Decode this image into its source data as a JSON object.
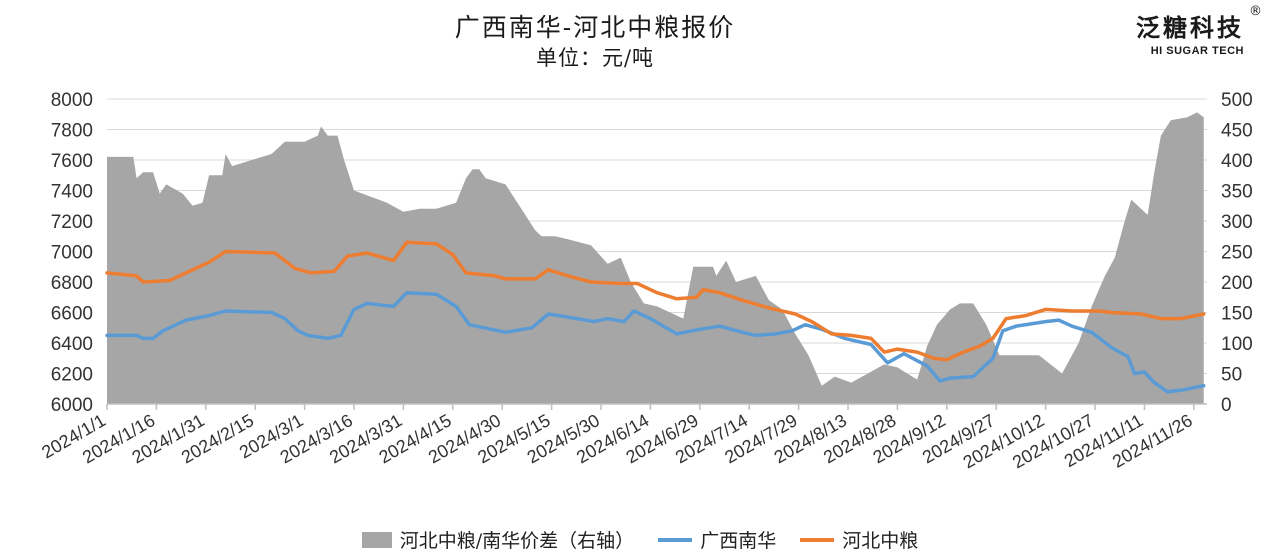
{
  "header": {
    "title": "广西南华-河北中粮报价",
    "subtitle": "单位：元/吨"
  },
  "logo": {
    "text": "泛糖科技",
    "registered": "®",
    "sub": "HI SUGAR TECH"
  },
  "colors": {
    "spread": "#a6a6a6",
    "guangxi": "#5b9bd5",
    "hebei": "#ed7d31",
    "axis_text": "#333333",
    "grid": "#d9d9d9"
  },
  "chart_data": {
    "type": "line",
    "title": "广西南华-河北中粮报价",
    "subtitle": "单位：元/吨",
    "y_left": {
      "min": 6000,
      "max": 8000,
      "ticks": [
        6000,
        6200,
        6400,
        6600,
        6800,
        7000,
        7200,
        7400,
        7600,
        7800,
        8000
      ]
    },
    "y_right": {
      "min": 0,
      "max": 500,
      "ticks": [
        0,
        50,
        100,
        150,
        200,
        250,
        300,
        350,
        400,
        450,
        500
      ]
    },
    "x_range": [
      "2024/1/1",
      "2024/11/30"
    ],
    "x_ticks": [
      "2024/1/1",
      "2024/1/16",
      "2024/1/31",
      "2024/2/15",
      "2024/3/1",
      "2024/3/16",
      "2024/3/31",
      "2024/4/15",
      "2024/4/30",
      "2024/5/15",
      "2024/5/30",
      "2024/6/14",
      "2024/6/29",
      "2024/7/14",
      "2024/7/29",
      "2024/8/13",
      "2024/8/28",
      "2024/9/12",
      "2024/9/27",
      "2024/10/12",
      "2024/10/27",
      "2024/11/11",
      "2024/11/26"
    ],
    "grid": true,
    "legend_position": "bottom",
    "series": [
      {
        "name": "河北中粮/南华价差（右轴）",
        "type": "area",
        "axis": "right",
        "color": "#a6a6a6",
        "points": [
          [
            "2024/1/1",
            405
          ],
          [
            "2024/1/9",
            405
          ],
          [
            "2024/1/10",
            370
          ],
          [
            "2024/1/12",
            380
          ],
          [
            "2024/1/15",
            380
          ],
          [
            "2024/1/17",
            345
          ],
          [
            "2024/1/19",
            360
          ],
          [
            "2024/1/24",
            345
          ],
          [
            "2024/1/27",
            325
          ],
          [
            "2024/1/30",
            330
          ],
          [
            "2024/2/1",
            375
          ],
          [
            "2024/2/5",
            375
          ],
          [
            "2024/2/6",
            410
          ],
          [
            "2024/2/8",
            390
          ],
          [
            "2024/2/20",
            410
          ],
          [
            "2024/2/24",
            430
          ],
          [
            "2024/3/1",
            430
          ],
          [
            "2024/3/5",
            440
          ],
          [
            "2024/3/6",
            455
          ],
          [
            "2024/3/8",
            440
          ],
          [
            "2024/3/11",
            440
          ],
          [
            "2024/3/13",
            400
          ],
          [
            "2024/3/16",
            350
          ],
          [
            "2024/3/21",
            340
          ],
          [
            "2024/3/26",
            330
          ],
          [
            "2024/3/31",
            315
          ],
          [
            "2024/4/5",
            320
          ],
          [
            "2024/4/10",
            320
          ],
          [
            "2024/4/16",
            330
          ],
          [
            "2024/4/19",
            370
          ],
          [
            "2024/4/21",
            385
          ],
          [
            "2024/4/23",
            385
          ],
          [
            "2024/4/25",
            370
          ],
          [
            "2024/5/1",
            360
          ],
          [
            "2024/5/7",
            310
          ],
          [
            "2024/5/10",
            285
          ],
          [
            "2024/5/12",
            275
          ],
          [
            "2024/5/16",
            275
          ],
          [
            "2024/5/20",
            270
          ],
          [
            "2024/5/27",
            260
          ],
          [
            "2024/6/1",
            230
          ],
          [
            "2024/6/5",
            240
          ],
          [
            "2024/6/8",
            200
          ],
          [
            "2024/6/12",
            165
          ],
          [
            "2024/6/16",
            160
          ],
          [
            "2024/6/24",
            140
          ],
          [
            "2024/6/27",
            225
          ],
          [
            "2024/7/3",
            225
          ],
          [
            "2024/7/4",
            210
          ],
          [
            "2024/7/7",
            235
          ],
          [
            "2024/7/10",
            200
          ],
          [
            "2024/7/16",
            210
          ],
          [
            "2024/7/20",
            170
          ],
          [
            "2024/7/24",
            155
          ],
          [
            "2024/7/28",
            115
          ],
          [
            "2024/8/1",
            80
          ],
          [
            "2024/8/5",
            30
          ],
          [
            "2024/8/9",
            45
          ],
          [
            "2024/8/14",
            35
          ],
          [
            "2024/8/19",
            50
          ],
          [
            "2024/8/24",
            65
          ],
          [
            "2024/8/28",
            60
          ],
          [
            "2024/8/31",
            50
          ],
          [
            "2024/9/3",
            40
          ],
          [
            "2024/9/6",
            95
          ],
          [
            "2024/9/9",
            130
          ],
          [
            "2024/9/13",
            155
          ],
          [
            "2024/9/16",
            165
          ],
          [
            "2024/9/20",
            165
          ],
          [
            "2024/9/24",
            130
          ],
          [
            "2024/9/28",
            80
          ],
          [
            "2024/10/3",
            80
          ],
          [
            "2024/10/10",
            80
          ],
          [
            "2024/10/17",
            50
          ],
          [
            "2024/10/22",
            100
          ],
          [
            "2024/10/26",
            160
          ],
          [
            "2024/10/30",
            210
          ],
          [
            "2024/11/2",
            240
          ],
          [
            "2024/11/5",
            300
          ],
          [
            "2024/11/7",
            335
          ],
          [
            "2024/11/9",
            325
          ],
          [
            "2024/11/12",
            310
          ],
          [
            "2024/11/14",
            380
          ],
          [
            "2024/11/16",
            440
          ],
          [
            "2024/11/19",
            465
          ],
          [
            "2024/11/24",
            470
          ],
          [
            "2024/11/27",
            478
          ],
          [
            "2024/11/29",
            470
          ]
        ]
      },
      {
        "name": "广西南华",
        "type": "line",
        "axis": "left",
        "color": "#5b9bd5",
        "points": [
          [
            "2024/1/1",
            6450
          ],
          [
            "2024/1/10",
            6450
          ],
          [
            "2024/1/12",
            6430
          ],
          [
            "2024/1/15",
            6430
          ],
          [
            "2024/1/18",
            6480
          ],
          [
            "2024/1/25",
            6550
          ],
          [
            "2024/2/1",
            6580
          ],
          [
            "2024/2/6",
            6610
          ],
          [
            "2024/2/20",
            6600
          ],
          [
            "2024/2/24",
            6560
          ],
          [
            "2024/2/28",
            6480
          ],
          [
            "2024/3/2",
            6450
          ],
          [
            "2024/3/8",
            6430
          ],
          [
            "2024/3/12",
            6450
          ],
          [
            "2024/3/16",
            6620
          ],
          [
            "2024/3/20",
            6660
          ],
          [
            "2024/3/28",
            6640
          ],
          [
            "2024/4/1",
            6730
          ],
          [
            "2024/4/10",
            6720
          ],
          [
            "2024/4/16",
            6640
          ],
          [
            "2024/4/20",
            6520
          ],
          [
            "2024/5/1",
            6470
          ],
          [
            "2024/5/9",
            6500
          ],
          [
            "2024/5/14",
            6590
          ],
          [
            "2024/5/20",
            6570
          ],
          [
            "2024/5/28",
            6540
          ],
          [
            "2024/6/1",
            6560
          ],
          [
            "2024/6/6",
            6540
          ],
          [
            "2024/6/9",
            6610
          ],
          [
            "2024/6/14",
            6560
          ],
          [
            "2024/6/22",
            6460
          ],
          [
            "2024/6/29",
            6490
          ],
          [
            "2024/7/5",
            6510
          ],
          [
            "2024/7/12",
            6470
          ],
          [
            "2024/7/16",
            6450
          ],
          [
            "2024/7/22",
            6460
          ],
          [
            "2024/7/27",
            6480
          ],
          [
            "2024/7/31",
            6520
          ],
          [
            "2024/8/5",
            6490
          ],
          [
            "2024/8/12",
            6430
          ],
          [
            "2024/8/20",
            6390
          ],
          [
            "2024/8/25",
            6270
          ],
          [
            "2024/8/30",
            6330
          ],
          [
            "2024/9/6",
            6250
          ],
          [
            "2024/9/10",
            6150
          ],
          [
            "2024/9/13",
            6170
          ],
          [
            "2024/9/20",
            6180
          ],
          [
            "2024/9/23",
            6240
          ],
          [
            "2024/9/26",
            6300
          ],
          [
            "2024/9/29",
            6480
          ],
          [
            "2024/10/3",
            6510
          ],
          [
            "2024/10/12",
            6540
          ],
          [
            "2024/10/16",
            6550
          ],
          [
            "2024/10/20",
            6510
          ],
          [
            "2024/10/26",
            6470
          ],
          [
            "2024/11/1",
            6370
          ],
          [
            "2024/11/6",
            6310
          ],
          [
            "2024/11/8",
            6200
          ],
          [
            "2024/11/11",
            6210
          ],
          [
            "2024/11/14",
            6140
          ],
          [
            "2024/11/18",
            6080
          ],
          [
            "2024/11/22",
            6090
          ],
          [
            "2024/11/29",
            6120
          ]
        ]
      },
      {
        "name": "河北中粮",
        "type": "line",
        "axis": "left",
        "color": "#ed7d31",
        "points": [
          [
            "2024/1/1",
            6860
          ],
          [
            "2024/1/10",
            6840
          ],
          [
            "2024/1/12",
            6800
          ],
          [
            "2024/1/20",
            6810
          ],
          [
            "2024/1/25",
            6860
          ],
          [
            "2024/2/1",
            6930
          ],
          [
            "2024/2/6",
            7000
          ],
          [
            "2024/2/21",
            6990
          ],
          [
            "2024/2/27",
            6890
          ],
          [
            "2024/3/3",
            6860
          ],
          [
            "2024/3/10",
            6870
          ],
          [
            "2024/3/14",
            6970
          ],
          [
            "2024/3/20",
            6990
          ],
          [
            "2024/3/28",
            6940
          ],
          [
            "2024/4/1",
            7060
          ],
          [
            "2024/4/10",
            7050
          ],
          [
            "2024/4/15",
            6980
          ],
          [
            "2024/4/19",
            6860
          ],
          [
            "2024/4/28",
            6840
          ],
          [
            "2024/5/1",
            6820
          ],
          [
            "2024/5/10",
            6820
          ],
          [
            "2024/5/14",
            6880
          ],
          [
            "2024/5/20",
            6840
          ],
          [
            "2024/5/27",
            6800
          ],
          [
            "2024/6/5",
            6790
          ],
          [
            "2024/6/10",
            6790
          ],
          [
            "2024/6/16",
            6730
          ],
          [
            "2024/6/22",
            6690
          ],
          [
            "2024/6/28",
            6700
          ],
          [
            "2024/6/30",
            6750
          ],
          [
            "2024/7/5",
            6730
          ],
          [
            "2024/7/12",
            6680
          ],
          [
            "2024/7/20",
            6630
          ],
          [
            "2024/7/28",
            6590
          ],
          [
            "2024/8/2",
            6540
          ],
          [
            "2024/8/8",
            6460
          ],
          [
            "2024/8/14",
            6450
          ],
          [
            "2024/8/20",
            6430
          ],
          [
            "2024/8/24",
            6340
          ],
          [
            "2024/8/28",
            6360
          ],
          [
            "2024/9/3",
            6340
          ],
          [
            "2024/9/8",
            6300
          ],
          [
            "2024/9/12",
            6290
          ],
          [
            "2024/9/17",
            6340
          ],
          [
            "2024/9/22",
            6380
          ],
          [
            "2024/9/26",
            6430
          ],
          [
            "2024/9/30",
            6560
          ],
          [
            "2024/10/6",
            6580
          ],
          [
            "2024/10/12",
            6620
          ],
          [
            "2024/10/20",
            6610
          ],
          [
            "2024/10/28",
            6610
          ],
          [
            "2024/11/1",
            6600
          ],
          [
            "2024/11/10",
            6590
          ],
          [
            "2024/11/16",
            6560
          ],
          [
            "2024/11/22",
            6560
          ],
          [
            "2024/11/29",
            6590
          ]
        ]
      }
    ]
  },
  "legend": [
    {
      "label": "河北中粮/南华价差（右轴）",
      "kind": "area",
      "color": "#a6a6a6"
    },
    {
      "label": "广西南华",
      "kind": "line",
      "color": "#5b9bd5"
    },
    {
      "label": "河北中粮",
      "kind": "line",
      "color": "#ed7d31"
    }
  ]
}
